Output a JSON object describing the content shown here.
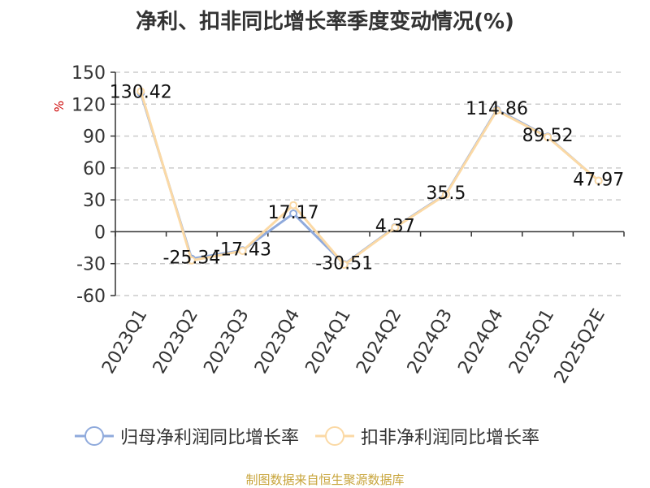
{
  "chart_data": {
    "type": "line",
    "title": "净利、扣非同比增长率季度变动情况(%)",
    "ylabel": "%",
    "categories": [
      "2023Q1",
      "2023Q2",
      "2023Q3",
      "2023Q4",
      "2024Q1",
      "2024Q2",
      "2024Q3",
      "2024Q4",
      "2025Q1",
      "2025Q2E"
    ],
    "ylim": [
      -60,
      150
    ],
    "yticks": [
      -60,
      -30,
      0,
      30,
      60,
      90,
      120,
      150
    ],
    "grid": true,
    "legend_position": "bottom",
    "series": [
      {
        "name": "归母净利润同比增长率",
        "color": "#8faadc",
        "values": [
          130.42,
          -25.34,
          -17.43,
          17.17,
          -30.51,
          4.37,
          35.5,
          114.86,
          89.52,
          47.97
        ],
        "labels": [
          "130.42",
          "-25.34",
          "-17.43",
          "17.17",
          "-30.51",
          "4.37",
          "35.5",
          "114.86",
          "89.52",
          "47.97"
        ]
      },
      {
        "name": "扣非净利润同比增长率",
        "color": "#fbd9a5",
        "values": [
          132,
          -27,
          -18,
          25,
          -31,
          4,
          35,
          114,
          89,
          48
        ]
      }
    ]
  },
  "footer": {
    "source": "制图数据来自恒生聚源数据库"
  }
}
